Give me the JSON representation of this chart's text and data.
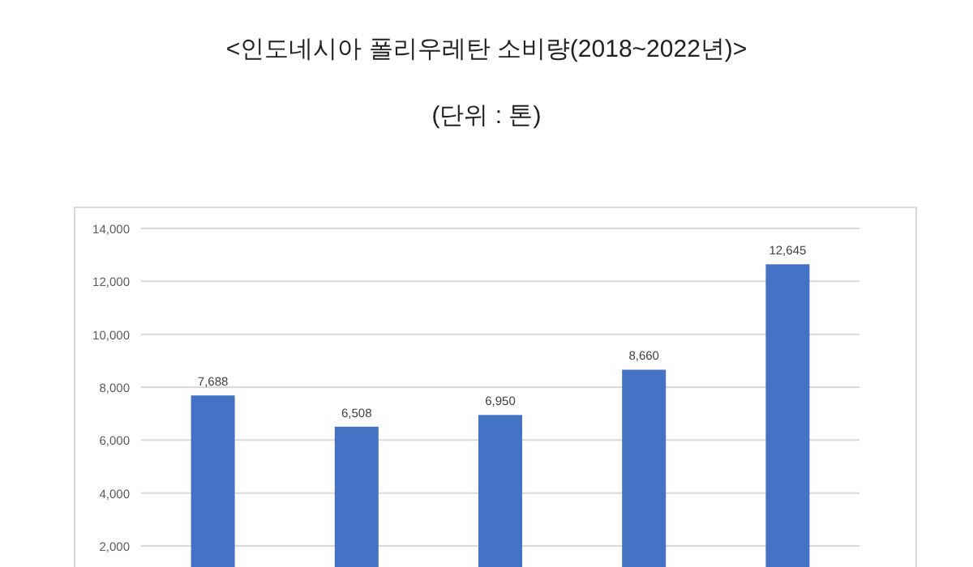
{
  "chart_data": {
    "type": "bar",
    "title": "<인도네시아 폴리우레탄 소비량(2018~2022년)>",
    "subtitle": "(단위 : 톤)",
    "categories": [
      null,
      null,
      null,
      null,
      null
    ],
    "values": [
      7688,
      6508,
      6950,
      8660,
      12645
    ],
    "value_labels": [
      "7,688",
      "6,508",
      "6,950",
      "8,660",
      "12,645"
    ],
    "color": "#4472c4",
    "ylim": [
      0,
      14000
    ],
    "yticks": [
      {
        "value": 2000,
        "label": "2,000"
      },
      {
        "value": 4000,
        "label": "4,000"
      },
      {
        "value": 6000,
        "label": "6,000"
      },
      {
        "value": 8000,
        "label": "8,000"
      },
      {
        "value": 10000,
        "label": "10,000"
      },
      {
        "value": 12000,
        "label": "12,000"
      },
      {
        "value": 14000,
        "label": "14,000"
      }
    ],
    "grid": "y"
  }
}
